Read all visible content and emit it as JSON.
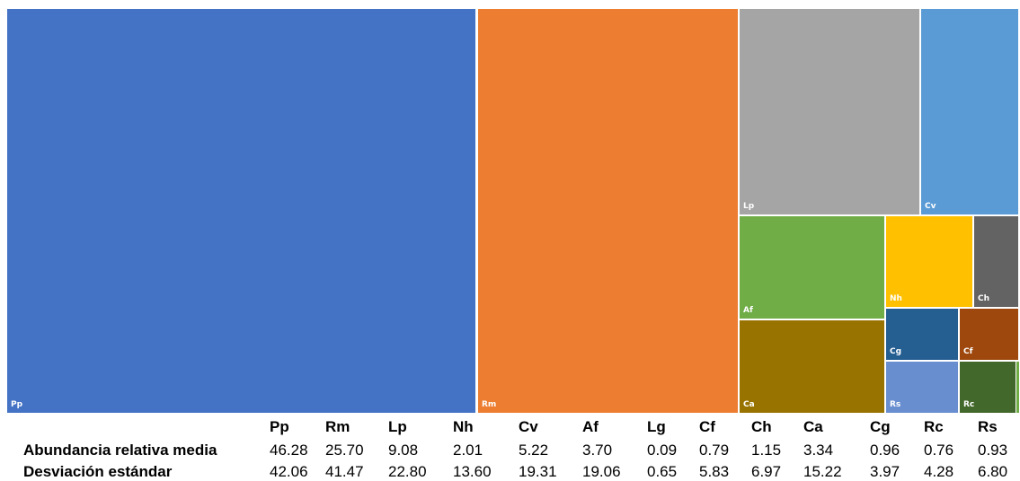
{
  "chart_data": {
    "type": "treemap",
    "series": [
      {
        "label": "Pp",
        "value": 46.28,
        "color": "#4472c4"
      },
      {
        "label": "Rm",
        "value": 25.7,
        "color": "#ed7d31"
      },
      {
        "label": "Lp",
        "value": 9.08,
        "color": "#a5a5a5"
      },
      {
        "label": "Cv",
        "value": 5.22,
        "color": "#5b9bd5"
      },
      {
        "label": "Af",
        "value": 3.7,
        "color": "#70ad47"
      },
      {
        "label": "Ca",
        "value": 3.34,
        "color": "#997300"
      },
      {
        "label": "Nh",
        "value": 2.01,
        "color": "#ffc000"
      },
      {
        "label": "Ch",
        "value": 1.15,
        "color": "#636363"
      },
      {
        "label": "Cg",
        "value": 0.96,
        "color": "#255e91"
      },
      {
        "label": "Cf",
        "value": 0.79,
        "color": "#9e480e"
      },
      {
        "label": "Rs",
        "value": 0.93,
        "color": "#698ed0"
      },
      {
        "label": "Rc",
        "value": 0.76,
        "color": "#43682b"
      },
      {
        "label": "Lg",
        "value": 0.09,
        "color": "#70ad47"
      }
    ]
  },
  "table": {
    "headers": [
      "Pp",
      "Rm",
      "Lp",
      "Nh",
      "Cv",
      "Af",
      "Lg",
      "Cf",
      "Ch",
      "Ca",
      "Cg",
      "Rc",
      "Rs"
    ],
    "rows": [
      {
        "label": "Abundancia relativa media",
        "values": [
          "46.28",
          "25.70",
          "9.08",
          "2.01",
          "5.22",
          "3.70",
          "0.09",
          "0.79",
          "1.15",
          "3.34",
          "0.96",
          "0.76",
          "0.93"
        ]
      },
      {
        "label": "Desviación estándar",
        "values": [
          "42.06",
          "41.47",
          "22.80",
          "13.60",
          "19.31",
          "19.06",
          "0.65",
          "5.83",
          "6.97",
          "15.22",
          "3.97",
          "4.28",
          "6.80"
        ]
      }
    ]
  }
}
